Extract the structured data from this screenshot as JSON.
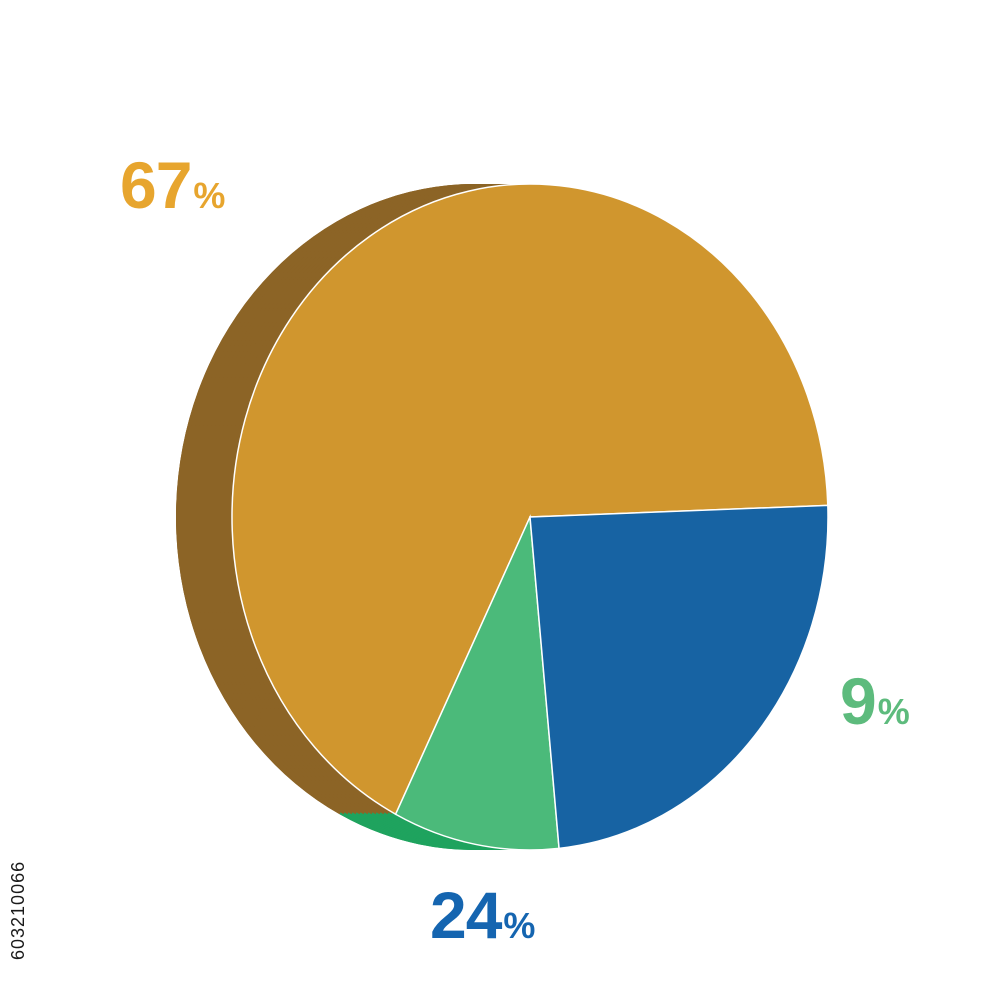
{
  "chart_data": {
    "type": "pie",
    "style": "3d",
    "title": "",
    "slices": [
      {
        "value": 67,
        "label_number": "67",
        "label_unit": "%",
        "color": "#D0962E",
        "side_color": "#8C6426",
        "label_color": "#E7A52E"
      },
      {
        "value": 9,
        "label_number": "9",
        "label_unit": "%",
        "color": "#4BBA7A",
        "side_color": "#1FA35E",
        "label_color": "#5DBB7D"
      },
      {
        "value": 24,
        "label_number": "24",
        "label_unit": "%",
        "color": "#1763A3",
        "side_color": "#0D4878",
        "label_color": "#1565B0"
      }
    ],
    "legend": "none"
  },
  "stock_id": "603210066"
}
